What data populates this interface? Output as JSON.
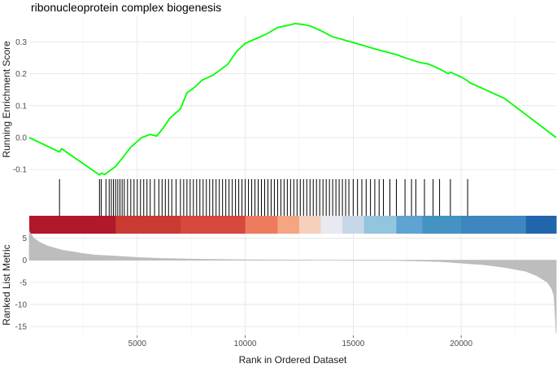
{
  "chart_data": {
    "type": "line",
    "title": "ribonucleoprotein complex biogenesis",
    "xlabel": "Rank in Ordered Dataset",
    "xlim": [
      0,
      24400
    ],
    "xticks": [
      5000,
      10000,
      15000,
      20000
    ],
    "grid": true,
    "colors": {
      "running_score": "#00ff00",
      "hits": "#000000",
      "ranked_metric": "#bdbdbd"
    },
    "running_enrichment": {
      "ylabel": "Running Enrichment Score",
      "ylim": [
        -0.13,
        0.38
      ],
      "yticks": [
        -0.1,
        0.0,
        0.1,
        0.2,
        0.3
      ],
      "x": [
        0,
        1400,
        1500,
        3250,
        3330,
        3500,
        3700,
        4000,
        4300,
        4700,
        5200,
        5600,
        5900,
        6200,
        6500,
        7000,
        7300,
        7700,
        8000,
        8500,
        8800,
        9200,
        9600,
        10000,
        10500,
        11000,
        11500,
        12000,
        12300,
        12600,
        13000,
        13500,
        14000,
        15000,
        16000,
        17000,
        17500,
        18100,
        18500,
        19000,
        19400,
        19500,
        20000,
        20300,
        20400,
        22000,
        24400
      ],
      "y": [
        0.0,
        -0.045,
        -0.035,
        -0.117,
        -0.112,
        -0.115,
        -0.105,
        -0.09,
        -0.065,
        -0.03,
        0.0,
        0.01,
        0.005,
        0.03,
        0.06,
        0.09,
        0.14,
        0.16,
        0.18,
        0.195,
        0.21,
        0.23,
        0.27,
        0.295,
        0.31,
        0.325,
        0.345,
        0.352,
        0.357,
        0.355,
        0.35,
        0.335,
        0.317,
        0.298,
        0.278,
        0.26,
        0.248,
        0.235,
        0.23,
        0.215,
        0.2,
        0.205,
        0.19,
        0.178,
        0.172,
        0.123,
        0.0
      ]
    },
    "gene_hits": {
      "x": [
        1400,
        3250,
        3330,
        3550,
        3700,
        3800,
        3900,
        4000,
        4100,
        4200,
        4300,
        4400,
        4550,
        4700,
        4850,
        5000,
        5150,
        5300,
        5450,
        5600,
        5800,
        6000,
        6150,
        6300,
        6450,
        6600,
        6800,
        7000,
        7150,
        7300,
        7450,
        7600,
        7750,
        7900,
        8050,
        8200,
        8350,
        8500,
        8650,
        8800,
        8950,
        9100,
        9250,
        9400,
        9550,
        9700,
        9850,
        10000,
        10150,
        10300,
        10450,
        10600,
        10750,
        10900,
        11050,
        11200,
        11350,
        11500,
        11650,
        11800,
        11950,
        12100,
        12250,
        12400,
        12550,
        12700,
        12850,
        13000,
        13150,
        13300,
        13450,
        13600,
        13750,
        13900,
        14050,
        14200,
        14350,
        14500,
        14650,
        14800,
        15000,
        15200,
        15400,
        15600,
        15800,
        16000,
        16200,
        16400,
        16700,
        17000,
        17400,
        17700,
        17900,
        18300,
        18700,
        19000,
        19500,
        20300
      ]
    },
    "ranked_list_metric": {
      "ylabel": "Ranked List Metric",
      "ylim": [
        -17,
        6
      ],
      "yticks": [
        5,
        0,
        -5,
        -10,
        -15
      ],
      "x": [
        0,
        200,
        500,
        800,
        1200,
        1600,
        2000,
        2500,
        3000,
        4000,
        5000,
        6000,
        8000,
        10000,
        13200,
        17000,
        19000,
        21000,
        22000,
        23000,
        23500,
        24000,
        24200,
        24300,
        24350,
        24400
      ],
      "y": [
        6.5,
        5.0,
        4.0,
        3.3,
        2.7,
        2.2,
        1.9,
        1.5,
        1.2,
        0.9,
        0.6,
        0.4,
        0.2,
        0.1,
        0.0,
        -0.05,
        -0.3,
        -1.0,
        -1.6,
        -2.5,
        -3.5,
        -5.0,
        -6.5,
        -8.0,
        -12.0,
        -16.5
      ]
    },
    "color_bar": {
      "x": [
        0,
        4000,
        7000,
        10000,
        11500,
        12500,
        13500,
        14500,
        15500,
        17000,
        18200,
        20000,
        23000,
        24400
      ],
      "colors": [
        "#b2182b",
        "#c93a32",
        "#d6493c",
        "#ee7b5e",
        "#f4a582",
        "#f7d0bd",
        "#eae8f0",
        "#c7d7ea",
        "#92c5de",
        "#5fa3d2",
        "#4393c3",
        "#3d86c0",
        "#2166ac"
      ]
    }
  }
}
